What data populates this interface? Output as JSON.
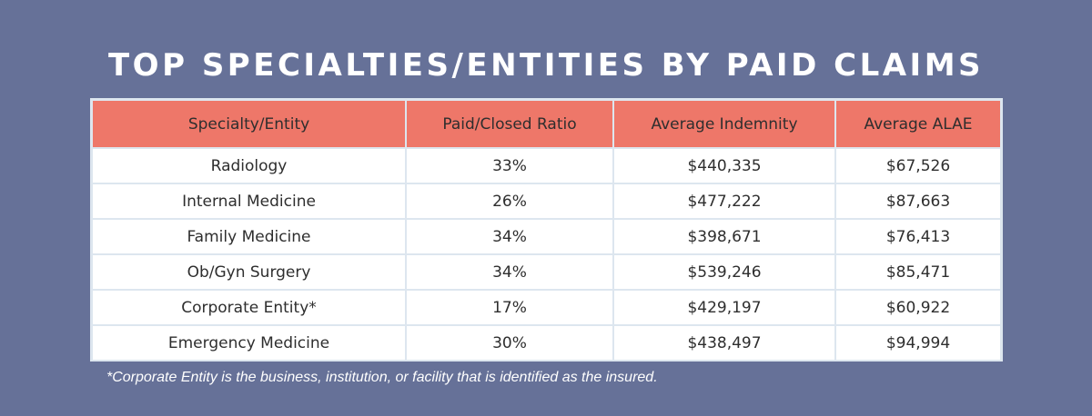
{
  "chart_data": {
    "type": "table",
    "title": "TOP SPECIALTIES/ENTITIES BY PAID CLAIMS",
    "columns": [
      "Specialty/Entity",
      "Paid/Closed Ratio",
      "Average Indemnity",
      "Average ALAE"
    ],
    "rows": [
      [
        "Radiology",
        "33%",
        "$440,335",
        "$67,526"
      ],
      [
        "Internal Medicine",
        "26%",
        "$477,222",
        "$87,663"
      ],
      [
        "Family Medicine",
        "34%",
        "$398,671",
        "$76,413"
      ],
      [
        "Ob/Gyn Surgery",
        "34%",
        "$539,246",
        "$85,471"
      ],
      [
        "Corporate Entity*",
        "17%",
        "$429,197",
        "$60,922"
      ],
      [
        "Emergency Medicine",
        "30%",
        "$438,497",
        "$94,994"
      ]
    ],
    "footnote": "*Corporate Entity is the business, institution, or facility that is identified as the insured."
  },
  "colors": {
    "background": "#667198",
    "header_fill": "#ee7769",
    "row_fill": "#ffffff",
    "grid_lines": "#dde6ef",
    "text": "#2e2e2e"
  }
}
